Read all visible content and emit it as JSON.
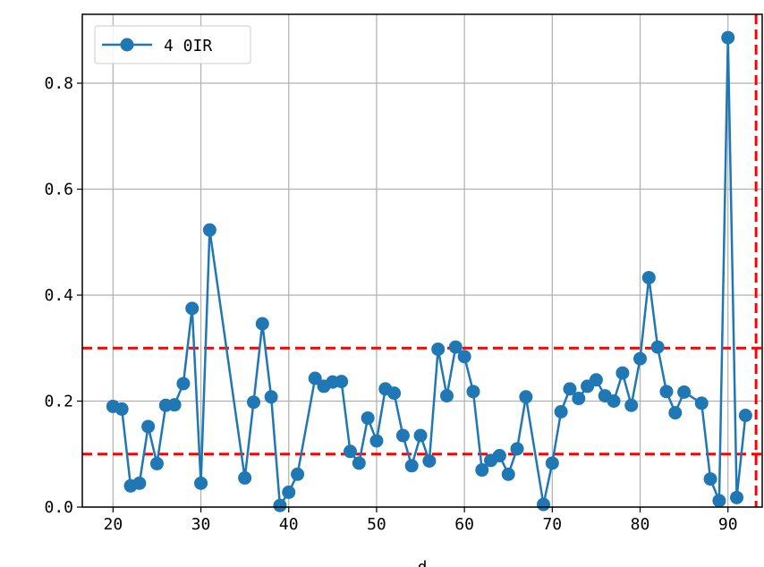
{
  "chart_data": {
    "type": "line",
    "xlabel": "d",
    "ylabel": "",
    "title": "",
    "xlim": [
      16.5,
      93.9
    ],
    "ylim": [
      0.0,
      0.93
    ],
    "xticks": [
      20,
      30,
      40,
      50,
      60,
      70,
      80,
      90
    ],
    "yticks": [
      0.0,
      0.2,
      0.4,
      0.6,
      0.8
    ],
    "xtick_labels": [
      "20",
      "30",
      "40",
      "50",
      "60",
      "70",
      "80",
      "90"
    ],
    "ytick_labels": [
      "0.0",
      "0.2",
      "0.4",
      "0.6",
      "0.8"
    ],
    "grid": true,
    "legend_position": "top-left",
    "series": [
      {
        "name": "4 0IR",
        "color": "#1f77b4",
        "marker": "circle",
        "x": [
          20,
          21,
          22,
          23,
          24,
          25,
          26,
          27,
          28,
          29,
          30,
          31,
          35,
          36,
          37,
          38,
          39,
          40,
          41,
          43,
          44,
          45,
          46,
          47,
          48,
          49,
          50,
          51,
          52,
          53,
          54,
          55,
          56,
          57,
          58,
          59,
          60,
          61,
          62,
          63,
          64,
          65,
          66,
          67,
          69,
          70,
          71,
          72,
          73,
          74,
          75,
          76,
          77,
          78,
          79,
          80,
          81,
          82,
          83,
          84,
          85,
          87,
          88,
          89,
          90,
          91,
          92
        ],
        "y": [
          0.19,
          0.185,
          0.04,
          0.045,
          0.152,
          0.082,
          0.192,
          0.193,
          0.233,
          0.375,
          0.045,
          0.523,
          0.055,
          0.198,
          0.346,
          0.208,
          0.003,
          0.028,
          0.062,
          0.243,
          0.228,
          0.236,
          0.237,
          0.105,
          0.083,
          0.168,
          0.125,
          0.223,
          0.215,
          0.135,
          0.078,
          0.135,
          0.087,
          0.298,
          0.21,
          0.302,
          0.284,
          0.218,
          0.07,
          0.088,
          0.097,
          0.062,
          0.11,
          0.208,
          0.005,
          0.083,
          0.18,
          0.223,
          0.205,
          0.228,
          0.24,
          0.21,
          0.2,
          0.253,
          0.192,
          0.28,
          0.433,
          0.302,
          0.218,
          0.178,
          0.217,
          0.196,
          0.053,
          0.012,
          0.886,
          0.018,
          0.173
        ]
      }
    ],
    "reference_lines": [
      {
        "orientation": "horizontal",
        "value": 0.3,
        "color": "#ff0000",
        "style": "dashed"
      },
      {
        "orientation": "horizontal",
        "value": 0.1,
        "color": "#ff0000",
        "style": "dashed"
      },
      {
        "orientation": "vertical",
        "value": 93.2,
        "color": "#ff0000",
        "style": "dashed"
      }
    ]
  }
}
